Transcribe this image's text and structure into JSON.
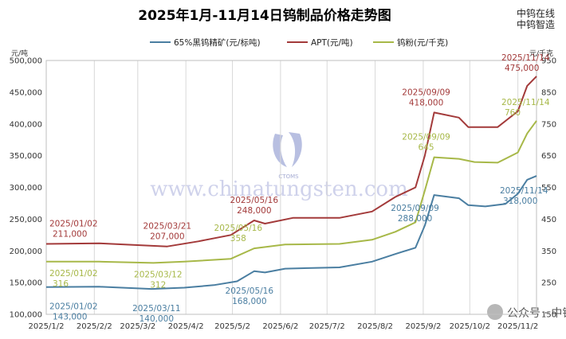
{
  "chart_data": {
    "type": "line",
    "title": "2025年1月-11月14日钨制品价格走势图",
    "watermark": {
      "brand_lines": [
        "中钨在线",
        "中钨智造"
      ],
      "center_text": "www.chinatungsten.com",
      "logo_text": "CTOMS",
      "footer": "公众号 · 中钨在线"
    },
    "x_ticks": [
      "2025/1/2",
      "2025/2/2",
      "2025/3/2",
      "2025/4/2",
      "2025/5/2",
      "2025/6/2",
      "2025/7/2",
      "2025/8/2",
      "2025/9/2",
      "2025/10/2",
      "2025/11/2"
    ],
    "x_range": [
      "2025/1/2",
      "2025/11/14"
    ],
    "y_left": {
      "unit_label": "元/吨",
      "range": [
        100000,
        500000
      ],
      "ticks": [
        "100,000",
        "150,000",
        "200,000",
        "250,000",
        "300,000",
        "350,000",
        "400,000",
        "450,000",
        "500,000"
      ]
    },
    "y_right": {
      "unit_label": "元/千克",
      "range": [
        150,
        950
      ],
      "ticks": [
        "150",
        "250",
        "350",
        "450",
        "550",
        "650",
        "750",
        "850",
        "950"
      ]
    },
    "grid": "vertical",
    "legend_position": "top",
    "series": [
      {
        "name": "65%黑钨精矿(元/标吨)",
        "axis": "left",
        "color": "#4a7ea1",
        "points": [
          [
            "2025/1/2",
            143000
          ],
          [
            "2025/2/5",
            143500
          ],
          [
            "2025/3/11",
            140000
          ],
          [
            "2025/4/1",
            142000
          ],
          [
            "2025/4/20",
            146000
          ],
          [
            "2025/5/5",
            152000
          ],
          [
            "2025/5/16",
            168000
          ],
          [
            "2025/5/23",
            166000
          ],
          [
            "2025/6/5",
            172000
          ],
          [
            "2025/7/10",
            174000
          ],
          [
            "2025/7/31",
            183000
          ],
          [
            "2025/8/15",
            195000
          ],
          [
            "2025/8/28",
            205000
          ],
          [
            "2025/9/3",
            240000
          ],
          [
            "2025/9/9",
            288000
          ],
          [
            "2025/9/25",
            283000
          ],
          [
            "2025/10/1",
            272000
          ],
          [
            "2025/10/12",
            270000
          ],
          [
            "2025/10/25",
            274000
          ],
          [
            "2025/11/2",
            290000
          ],
          [
            "2025/11/8",
            312000
          ],
          [
            "2025/11/14",
            318000
          ]
        ],
        "annotations": [
          {
            "date": "2025/01/02",
            "value": "143,000"
          },
          {
            "date": "2025/03/11",
            "value": "140,000"
          },
          {
            "date": "2025/05/16",
            "value": "168,000"
          },
          {
            "date": "2025/09/09",
            "value": "288,000"
          },
          {
            "date": "2025/11/14",
            "value": "318,000"
          }
        ]
      },
      {
        "name": "APT(元/吨)",
        "axis": "left",
        "color": "#a33a3a",
        "points": [
          [
            "2025/1/2",
            211000
          ],
          [
            "2025/2/5",
            212000
          ],
          [
            "2025/3/21",
            207000
          ],
          [
            "2025/4/10",
            215000
          ],
          [
            "2025/5/1",
            225000
          ],
          [
            "2025/5/16",
            248000
          ],
          [
            "2025/5/23",
            243000
          ],
          [
            "2025/6/10",
            252000
          ],
          [
            "2025/7/10",
            252000
          ],
          [
            "2025/7/31",
            262000
          ],
          [
            "2025/8/15",
            285000
          ],
          [
            "2025/8/28",
            300000
          ],
          [
            "2025/9/3",
            350000
          ],
          [
            "2025/9/9",
            418000
          ],
          [
            "2025/9/25",
            410000
          ],
          [
            "2025/10/1",
            395000
          ],
          [
            "2025/10/20",
            395000
          ],
          [
            "2025/11/2",
            420000
          ],
          [
            "2025/11/8",
            460000
          ],
          [
            "2025/11/14",
            475000
          ]
        ],
        "annotations": [
          {
            "date": "2025/01/02",
            "value": "211,000"
          },
          {
            "date": "2025/03/21",
            "value": "207,000"
          },
          {
            "date": "2025/05/16",
            "value": "248,000"
          },
          {
            "date": "2025/09/09",
            "value": "418,000"
          },
          {
            "date": "2025/11/14",
            "value": "475,000"
          }
        ]
      },
      {
        "name": "钨粉(元/千克)",
        "axis": "right",
        "color": "#a7b848",
        "points": [
          [
            "2025/1/2",
            316
          ],
          [
            "2025/2/5",
            316
          ],
          [
            "2025/3/12",
            312
          ],
          [
            "2025/4/1",
            316
          ],
          [
            "2025/5/1",
            325
          ],
          [
            "2025/5/16",
            358
          ],
          [
            "2025/6/5",
            370
          ],
          [
            "2025/7/10",
            372
          ],
          [
            "2025/7/31",
            385
          ],
          [
            "2025/8/15",
            410
          ],
          [
            "2025/8/28",
            440
          ],
          [
            "2025/9/3",
            540
          ],
          [
            "2025/9/9",
            645
          ],
          [
            "2025/9/25",
            640
          ],
          [
            "2025/10/5",
            630
          ],
          [
            "2025/10/20",
            628
          ],
          [
            "2025/11/2",
            660
          ],
          [
            "2025/11/8",
            720
          ],
          [
            "2025/11/14",
            760
          ]
        ],
        "annotations": [
          {
            "date": "2025/01/02",
            "value": "316"
          },
          {
            "date": "2025/03/12",
            "value": "312"
          },
          {
            "date": "2025/05/16",
            "value": "358"
          },
          {
            "date": "2025/09/09",
            "value": "645"
          },
          {
            "date": "2025/11/14",
            "value": "760"
          }
        ]
      }
    ]
  }
}
